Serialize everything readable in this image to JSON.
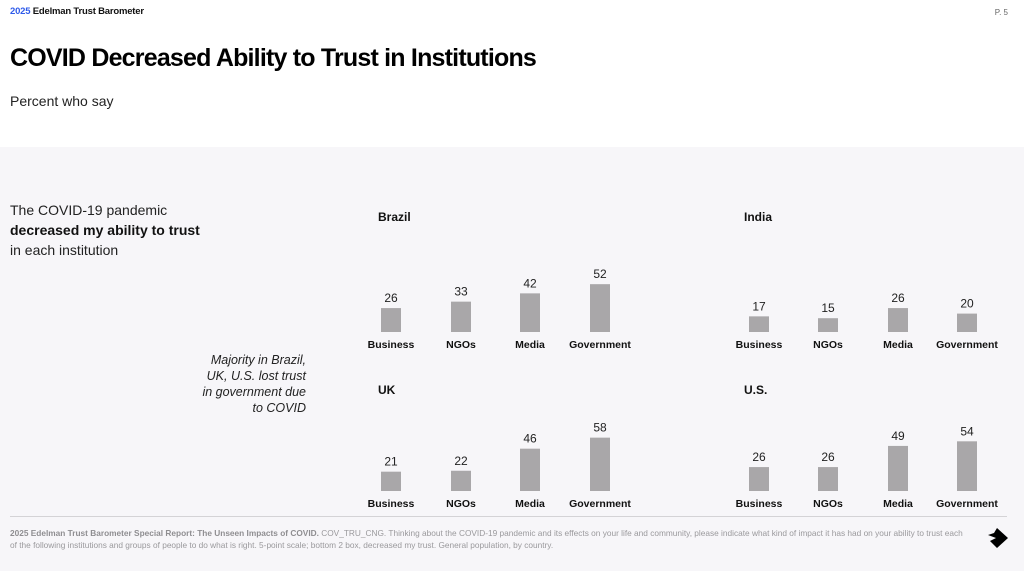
{
  "header": {
    "brand_year": "2025",
    "brand_name": "Edelman Trust Barometer",
    "page_number": "P. 5"
  },
  "title": "COVID Decreased Ability to Trust in Institutions",
  "subtitle": "Percent who say",
  "question": {
    "line1": "The COVID-19 pandemic",
    "line2_bold": "decreased my ability to trust",
    "line3": "in each institution"
  },
  "note": {
    "lines": [
      "Majority in Brazil,",
      "UK, U.S. lost trust",
      "in government due",
      "to COVID"
    ]
  },
  "footnote": {
    "bold": "2025 Edelman Trust Barometer Special Report: The Unseen Impacts of COVID.",
    "text": " COV_TRU_CNG. Thinking about the COVID-19 pandemic and its effects on your life and community, please indicate what kind of impact it has had on your ability to trust each of the following institutions and groups of people to do what is right. 5-point scale; bottom 2 box, decreased my trust. General population, by country."
  },
  "nav": {
    "next_icon": "arrow-right-icon"
  },
  "colors": {
    "bar": "#a9a7a9",
    "brand_accent": "#2f5bea",
    "panel_bg": "#f7f6f9"
  },
  "chart_data": [
    {
      "type": "bar",
      "title": "Brazil",
      "categories": [
        "Business",
        "NGOs",
        "Media",
        "Government"
      ],
      "values": [
        26,
        33,
        42,
        52
      ],
      "xlabel": "",
      "ylabel": "Percent",
      "ylim": [
        0,
        100
      ]
    },
    {
      "type": "bar",
      "title": "India",
      "categories": [
        "Business",
        "NGOs",
        "Media",
        "Government"
      ],
      "values": [
        17,
        15,
        26,
        20
      ],
      "xlabel": "",
      "ylabel": "Percent",
      "ylim": [
        0,
        100
      ]
    },
    {
      "type": "bar",
      "title": "UK",
      "categories": [
        "Business",
        "NGOs",
        "Media",
        "Government"
      ],
      "values": [
        21,
        22,
        46,
        58
      ],
      "xlabel": "",
      "ylabel": "Percent",
      "ylim": [
        0,
        100
      ]
    },
    {
      "type": "bar",
      "title": "U.S.",
      "categories": [
        "Business",
        "NGOs",
        "Media",
        "Government"
      ],
      "values": [
        26,
        26,
        49,
        54
      ],
      "xlabel": "",
      "ylabel": "Percent",
      "ylim": [
        0,
        100
      ]
    }
  ]
}
